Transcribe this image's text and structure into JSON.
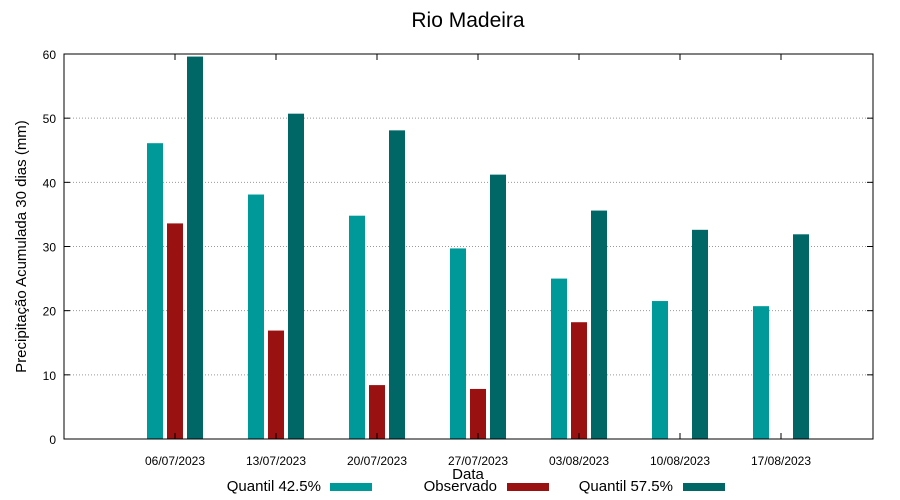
{
  "chart_data": {
    "type": "bar",
    "title": "Rio Madeira",
    "xlabel": "Data",
    "ylabel": "Precipitação Acumulada 30 dias (mm)",
    "ylim": [
      0,
      60
    ],
    "yticks": [
      0,
      10,
      20,
      30,
      40,
      50,
      60
    ],
    "grid": true,
    "legend_position": "bottom",
    "categories": [
      "06/07/2023",
      "13/07/2023",
      "20/07/2023",
      "27/07/2023",
      "03/08/2023",
      "10/08/2023",
      "17/08/2023"
    ],
    "series": [
      {
        "name": "Quantil 42.5%",
        "color": "#009999",
        "values": [
          46.1,
          38.1,
          34.8,
          29.7,
          25.0,
          21.5,
          20.7
        ]
      },
      {
        "name": "Observado",
        "color": "#991111",
        "values": [
          33.6,
          16.9,
          8.4,
          7.8,
          18.2,
          null,
          null
        ]
      },
      {
        "name": "Quantil 57.5%",
        "color": "#006666",
        "values": [
          59.6,
          50.7,
          48.1,
          41.2,
          35.6,
          32.6,
          31.9
        ]
      }
    ]
  }
}
